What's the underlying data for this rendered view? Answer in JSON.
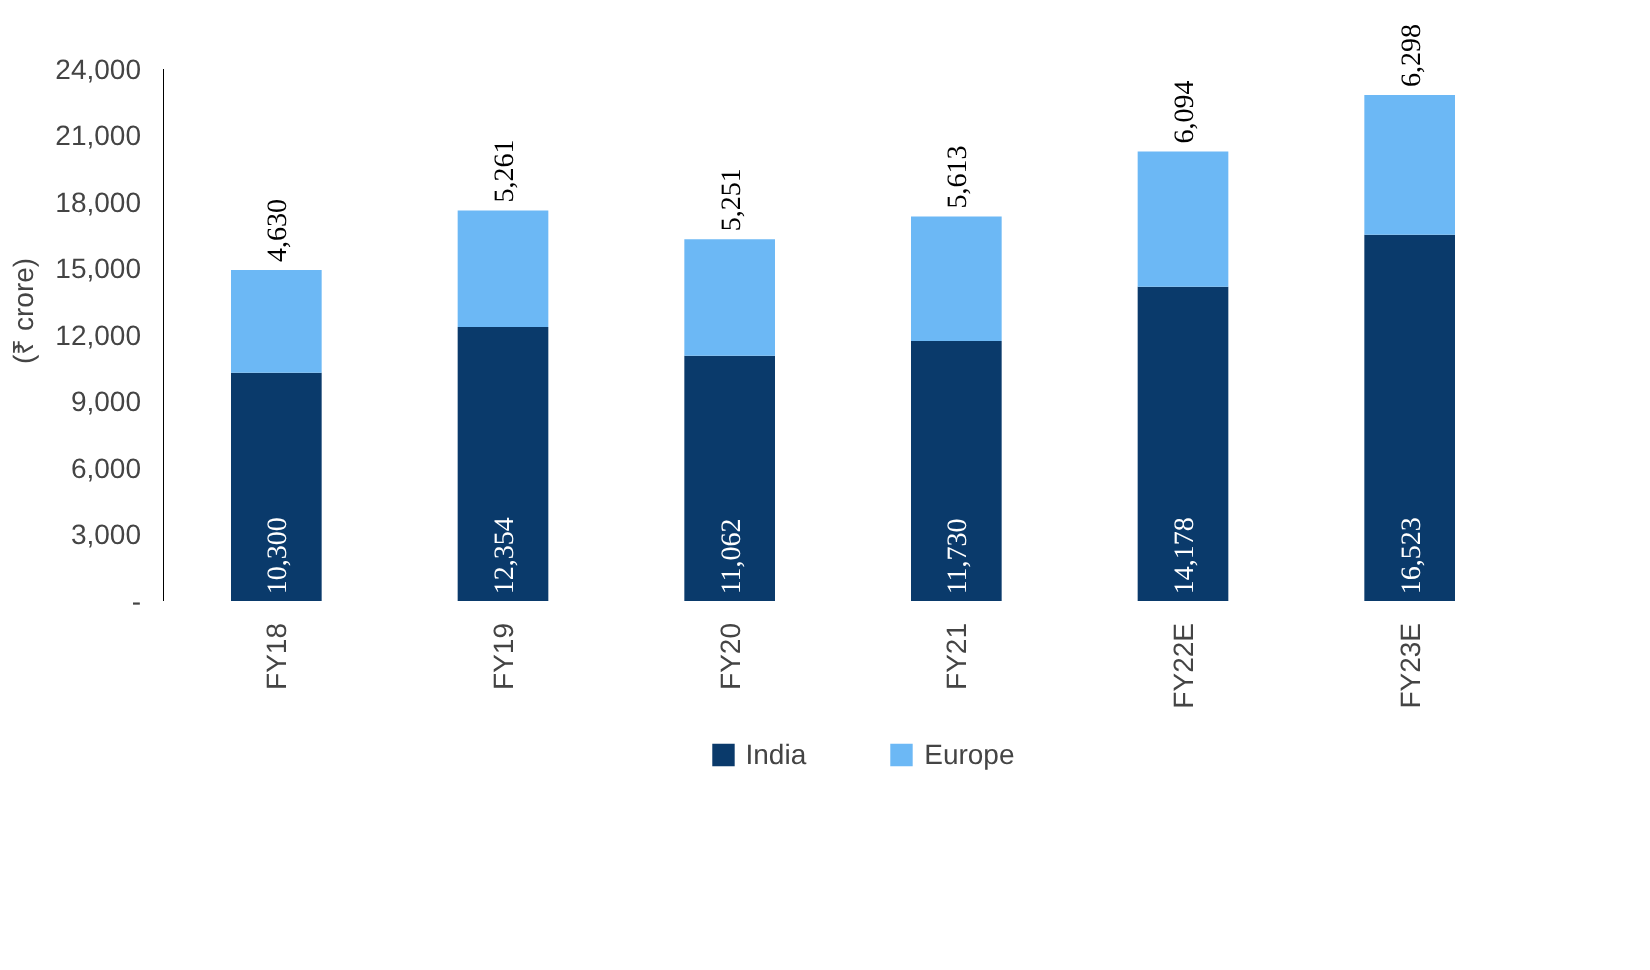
{
  "chart_data": {
    "type": "bar",
    "stacked": true,
    "ylabel": "(₹ crore)",
    "categories": [
      "FY18",
      "FY19",
      "FY20",
      "FY21",
      "FY22E",
      "FY23E"
    ],
    "series": [
      {
        "name": "India",
        "color": "#0a3a6b",
        "values": [
          10300,
          12354,
          11062,
          11730,
          14178,
          16523
        ],
        "value_labels": [
          "10,300",
          "12,354",
          "11,062",
          "11,730",
          "14,178",
          "16,523"
        ]
      },
      {
        "name": "Europe",
        "color": "#6cb8f5",
        "values": [
          4630,
          5261,
          5251,
          5613,
          6094,
          6298
        ],
        "value_labels": [
          "4,630",
          "5,261",
          "5,251",
          "5,613",
          "6,094",
          "6,298"
        ]
      }
    ],
    "ylim": [
      0,
      24000
    ],
    "yticks": [
      {
        "value": 0,
        "label": "-"
      },
      {
        "value": 3000,
        "label": "3,000"
      },
      {
        "value": 6000,
        "label": "6,000"
      },
      {
        "value": 9000,
        "label": "9,000"
      },
      {
        "value": 12000,
        "label": "12,000"
      },
      {
        "value": 15000,
        "label": "15,000"
      },
      {
        "value": 18000,
        "label": "18,000"
      },
      {
        "value": 21000,
        "label": "21,000"
      },
      {
        "value": 24000,
        "label": "24,000"
      }
    ],
    "legend": "bottom"
  }
}
